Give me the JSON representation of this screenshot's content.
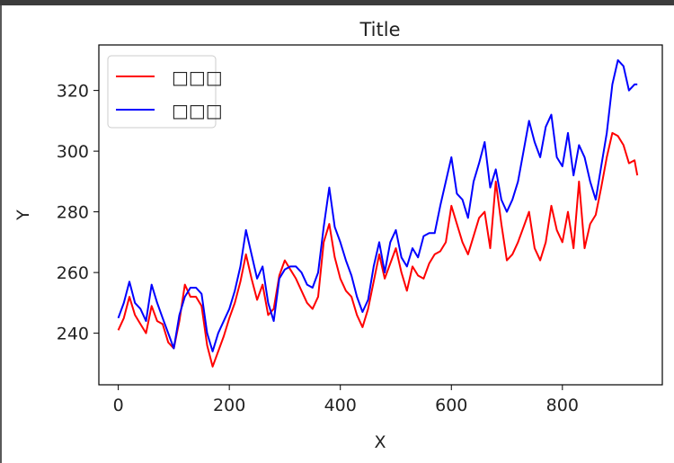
{
  "chart_data": {
    "type": "line",
    "title": "Title",
    "xlabel": "X",
    "ylabel": "Y",
    "xlim": [
      -35,
      980
    ],
    "ylim": [
      223,
      335
    ],
    "xticks": [
      0,
      200,
      400,
      600,
      800
    ],
    "yticks": [
      240,
      260,
      280,
      300,
      320
    ],
    "grid": false,
    "legend": "top-left",
    "series": [
      {
        "name": "□□□",
        "color": "#ff0000",
        "x": [
          0,
          10,
          20,
          30,
          40,
          50,
          60,
          70,
          80,
          90,
          100,
          110,
          120,
          130,
          140,
          150,
          160,
          170,
          180,
          190,
          200,
          210,
          220,
          230,
          240,
          250,
          260,
          270,
          280,
          290,
          300,
          310,
          320,
          330,
          340,
          350,
          360,
          370,
          380,
          390,
          400,
          410,
          420,
          430,
          440,
          450,
          460,
          470,
          480,
          490,
          500,
          510,
          520,
          530,
          540,
          550,
          560,
          570,
          580,
          590,
          600,
          610,
          620,
          630,
          640,
          650,
          660,
          670,
          680,
          690,
          700,
          710,
          720,
          730,
          740,
          750,
          760,
          770,
          780,
          790,
          800,
          810,
          820,
          830,
          840,
          850,
          860,
          870,
          880,
          890,
          900,
          910,
          920,
          930,
          935
        ],
        "values": [
          241,
          245,
          252,
          246,
          243,
          240,
          249,
          244,
          243,
          237,
          235,
          244,
          256,
          252,
          252,
          249,
          236,
          229,
          234,
          239,
          245,
          250,
          257,
          266,
          258,
          251,
          256,
          246,
          248,
          259,
          264,
          261,
          258,
          254,
          250,
          248,
          252,
          270,
          276,
          265,
          258,
          254,
          252,
          246,
          242,
          248,
          257,
          266,
          258,
          263,
          268,
          260,
          254,
          262,
          259,
          258,
          263,
          266,
          267,
          270,
          282,
          276,
          270,
          266,
          272,
          278,
          280,
          268,
          290,
          276,
          264,
          266,
          270,
          275,
          280,
          268,
          264,
          270,
          282,
          274,
          270,
          280,
          268,
          290,
          268,
          276,
          279,
          288,
          298,
          306,
          305,
          302,
          296,
          297,
          292
        ]
      },
      {
        "name": "□□□",
        "color": "#0000ff",
        "x": [
          0,
          10,
          20,
          30,
          40,
          50,
          60,
          70,
          80,
          90,
          100,
          110,
          120,
          130,
          140,
          150,
          160,
          170,
          180,
          190,
          200,
          210,
          220,
          230,
          240,
          250,
          260,
          270,
          280,
          290,
          300,
          310,
          320,
          330,
          340,
          350,
          360,
          370,
          380,
          390,
          400,
          410,
          420,
          430,
          440,
          450,
          460,
          470,
          480,
          490,
          500,
          510,
          520,
          530,
          540,
          550,
          560,
          570,
          580,
          590,
          600,
          610,
          620,
          630,
          640,
          650,
          660,
          670,
          680,
          690,
          700,
          710,
          720,
          730,
          740,
          750,
          760,
          770,
          780,
          790,
          800,
          810,
          820,
          830,
          840,
          850,
          860,
          870,
          880,
          890,
          900,
          910,
          920,
          930,
          935
        ],
        "values": [
          245,
          250,
          257,
          250,
          248,
          244,
          256,
          250,
          245,
          240,
          235,
          246,
          252,
          255,
          255,
          253,
          240,
          234,
          240,
          244,
          248,
          254,
          262,
          274,
          266,
          258,
          262,
          250,
          244,
          258,
          261,
          262,
          262,
          260,
          256,
          255,
          260,
          275,
          288,
          275,
          270,
          264,
          259,
          252,
          247,
          251,
          262,
          270,
          260,
          270,
          274,
          265,
          262,
          268,
          265,
          272,
          273,
          273,
          282,
          290,
          298,
          286,
          284,
          278,
          290,
          296,
          303,
          288,
          294,
          284,
          280,
          284,
          290,
          300,
          310,
          303,
          298,
          308,
          312,
          298,
          295,
          306,
          292,
          302,
          298,
          290,
          284,
          295,
          306,
          322,
          330,
          328,
          320,
          322,
          322
        ]
      }
    ]
  }
}
